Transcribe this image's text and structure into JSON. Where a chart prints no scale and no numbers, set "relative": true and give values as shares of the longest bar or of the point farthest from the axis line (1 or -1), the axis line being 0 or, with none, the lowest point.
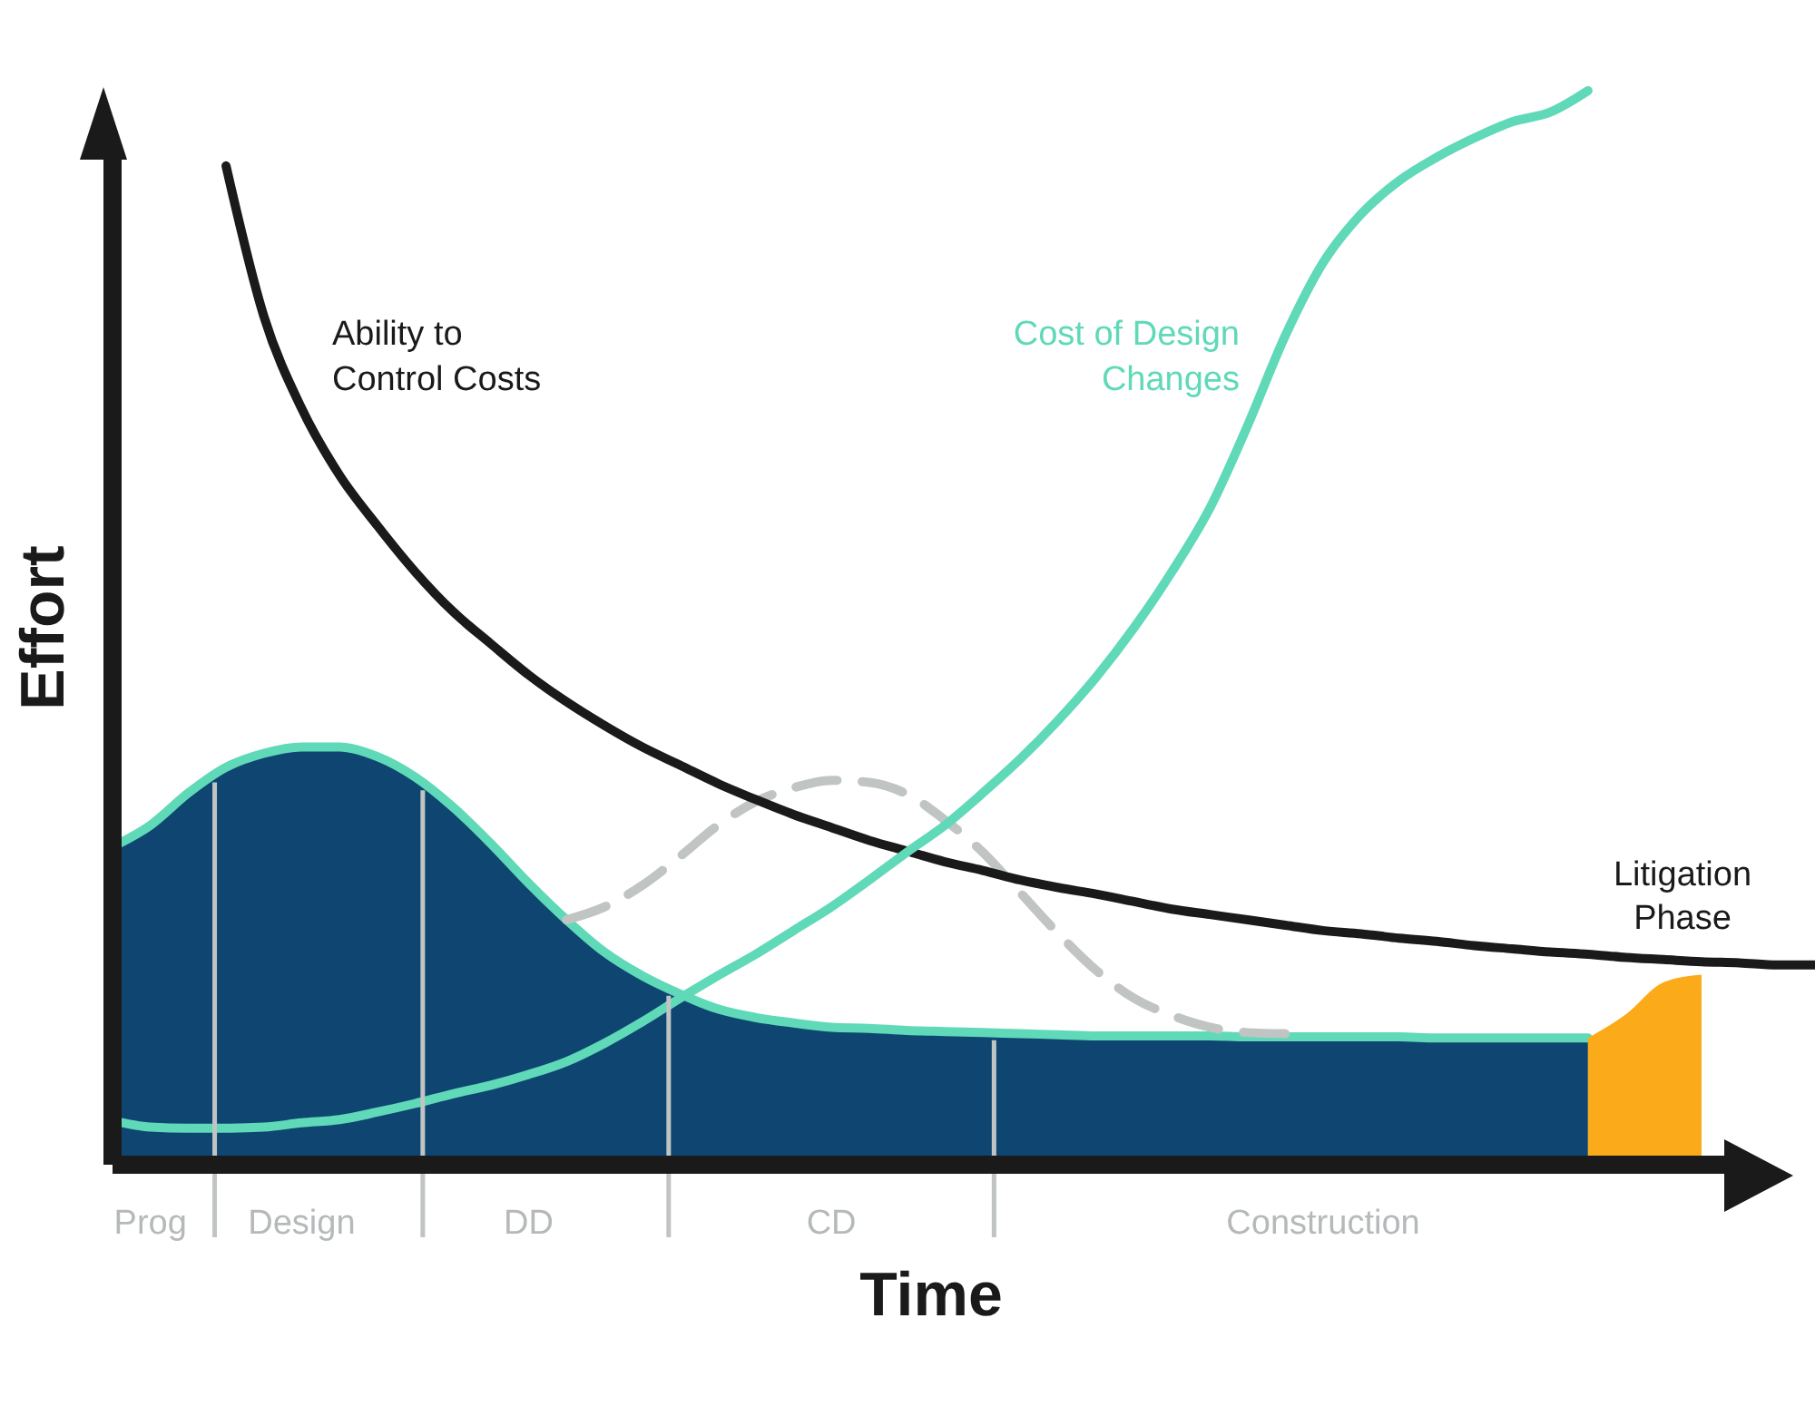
{
  "chart_data": {
    "type": "line",
    "relative": true,
    "annotations": [
      "Litigation Phase"
    ],
    "xlabel": "Time",
    "ylabel": "Effort",
    "categories": [
      null,
      "Prog",
      null,
      null,
      null,
      "Design",
      null,
      null,
      null,
      null,
      null,
      "DD",
      null,
      null,
      null,
      null,
      null,
      null,
      null,
      "CD",
      null,
      null,
      null,
      null,
      null,
      null,
      null,
      null,
      null,
      null,
      null,
      null,
      "Construction",
      null,
      null,
      null,
      null,
      null,
      null,
      null,
      null,
      null,
      null,
      null,
      null,
      null
    ],
    "series": [
      {
        "type": "area",
        "color": "#0f4571",
        "values": [
          0.296,
          0.316,
          0.346,
          0.37,
          0.383,
          0.389,
          0.389,
          0.38,
          0.361,
          0.333,
          0.299,
          0.262,
          0.228,
          0.198,
          0.176,
          0.159,
          0.145,
          0.137,
          0.132,
          0.128,
          0.127,
          0.125,
          0.124,
          0.123,
          0.122,
          0.121,
          0.12,
          0.12,
          0.12,
          0.12,
          0.119,
          0.119,
          0.119,
          0.119,
          0.119,
          0.118,
          0.118,
          0.118,
          0.118,
          0.118,
          null,
          null,
          null,
          null,
          null,
          null
        ]
      },
      {
        "type": "area",
        "color": "#fbaa19",
        "values": [
          null,
          null,
          null,
          null,
          null,
          null,
          null,
          null,
          null,
          null,
          null,
          null,
          null,
          null,
          null,
          null,
          null,
          null,
          null,
          null,
          null,
          null,
          null,
          null,
          null,
          null,
          null,
          null,
          null,
          null,
          null,
          null,
          null,
          null,
          null,
          null,
          null,
          null,
          null,
          0.118,
          0.14,
          0.17,
          0.177,
          null,
          null,
          null
        ]
      },
      {
        "color": "#c0c4c3",
        "line_style": "dashed",
        "values": [
          null,
          null,
          null,
          null,
          null,
          null,
          null,
          null,
          null,
          null,
          null,
          null,
          0.228,
          0.24,
          0.26,
          0.287,
          0.316,
          0.338,
          0.351,
          0.358,
          0.356,
          0.345,
          0.321,
          0.291,
          0.253,
          0.215,
          0.181,
          0.155,
          0.139,
          0.128,
          0.123,
          0.122,
          null,
          null,
          null,
          null,
          null,
          null,
          null,
          null,
          null,
          null,
          null,
          null,
          null,
          null
        ]
      },
      {
        "name": "Ability to Control Costs",
        "color": "#1a1a1a",
        "values": [
          null,
          null,
          null,
          0.93,
          0.79,
          0.704,
          0.642,
          0.595,
          0.552,
          0.515,
          0.485,
          0.456,
          0.431,
          0.409,
          0.389,
          0.372,
          0.355,
          0.34,
          0.326,
          0.314,
          0.302,
          0.292,
          0.282,
          0.274,
          0.265,
          0.258,
          0.252,
          0.245,
          0.238,
          0.233,
          0.228,
          0.223,
          0.218,
          0.215,
          0.211,
          0.208,
          0.204,
          0.201,
          0.198,
          0.196,
          0.193,
          0.191,
          0.189,
          0.188,
          0.186,
          0.186
        ]
      },
      {
        "name": "Cost of Design Changes",
        "color": "#5fd9b8",
        "values": [
          0.041,
          0.035,
          0.034,
          0.034,
          0.035,
          0.039,
          0.042,
          0.049,
          0.057,
          0.066,
          0.074,
          0.084,
          0.096,
          0.113,
          0.133,
          0.155,
          0.176,
          0.196,
          0.218,
          0.24,
          0.265,
          0.291,
          0.316,
          0.346,
          0.378,
          0.414,
          0.454,
          0.5,
          0.552,
          0.611,
          0.688,
          0.772,
          0.84,
          0.885,
          0.916,
          0.938,
          0.956,
          0.971,
          0.98,
          1,
          null,
          null,
          null,
          null,
          null,
          null
        ]
      }
    ]
  }
}
